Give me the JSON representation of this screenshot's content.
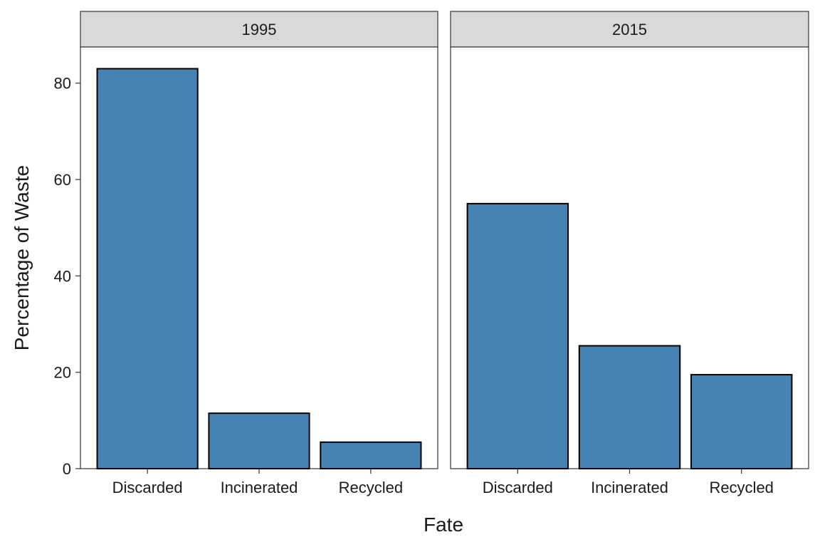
{
  "chart_data": {
    "type": "bar",
    "facet_by": "year",
    "categories": [
      "Discarded",
      "Incinerated",
      "Recycled"
    ],
    "facets": [
      {
        "label": "1995",
        "values": [
          83,
          11.5,
          5.5
        ]
      },
      {
        "label": "2015",
        "values": [
          55,
          25.5,
          19.5
        ]
      }
    ],
    "xlabel": "Fate",
    "ylabel": "Percentage of Waste",
    "ylim": [
      0,
      87.5
    ],
    "yticks": [
      "0",
      "20",
      "40",
      "60",
      "80"
    ],
    "ytick_values": [
      0,
      20,
      40,
      60,
      80
    ],
    "grid": false,
    "legend": "none",
    "colors": {
      "bar_fill": "#4682B4",
      "bar_stroke": "#000000",
      "strip_fill": "#D9D9D9",
      "panel_border": "#333333"
    }
  }
}
